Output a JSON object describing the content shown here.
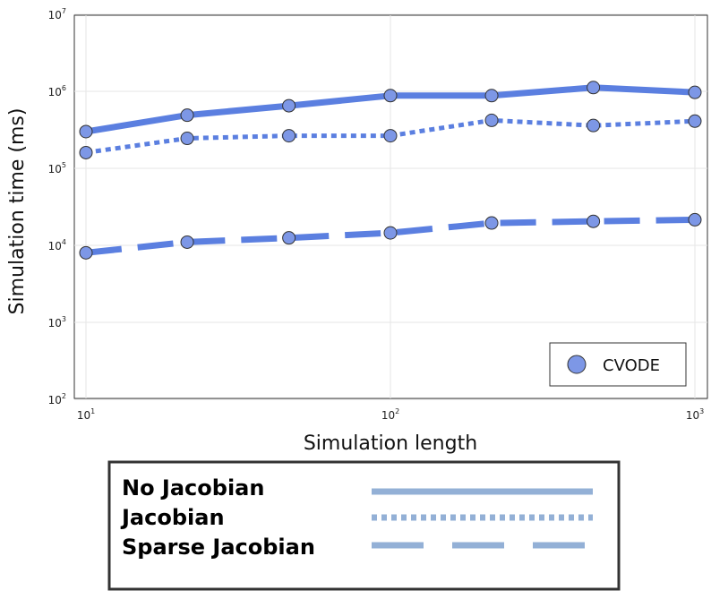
{
  "chart_data": {
    "type": "line",
    "xscale": "log",
    "yscale": "log",
    "xlim": [
      10,
      1000
    ],
    "ylim": [
      100,
      10000000
    ],
    "x_ticks": [
      {
        "base": "10",
        "exp": "1",
        "value": 10
      },
      {
        "base": "10",
        "exp": "2",
        "value": 100
      },
      {
        "base": "10",
        "exp": "3",
        "value": 1000
      }
    ],
    "y_ticks": [
      {
        "base": "10",
        "exp": "2",
        "value": 100
      },
      {
        "base": "10",
        "exp": "3",
        "value": 1000
      },
      {
        "base": "10",
        "exp": "4",
        "value": 10000
      },
      {
        "base": "10",
        "exp": "5",
        "value": 100000
      },
      {
        "base": "10",
        "exp": "6",
        "value": 1000000
      },
      {
        "base": "10",
        "exp": "7",
        "value": 10000000
      }
    ],
    "xlabel": "Simulation length",
    "ylabel": "Simulation time (ms)",
    "grid": true,
    "legend": {
      "placement": "bottom-right",
      "entries": [
        "CVODE"
      ]
    },
    "x": [
      10,
      21.5,
      46.4,
      100,
      215,
      464,
      1000
    ],
    "series": [
      {
        "name": "No Jacobian",
        "style": "solid",
        "values": [
          300000,
          490000,
          650000,
          880000,
          880000,
          1120000,
          970000
        ]
      },
      {
        "name": "Jacobian",
        "style": "dotted",
        "values": [
          160000,
          245000,
          265000,
          265000,
          420000,
          360000,
          410000
        ]
      },
      {
        "name": "Sparse Jacobian",
        "style": "dashed",
        "values": [
          8000,
          11000,
          12500,
          14500,
          19500,
          20500,
          21500
        ]
      }
    ],
    "colors": {
      "line": "#5b7fe0",
      "marker": "#7d97e6",
      "marker_edge": "#333333",
      "key_line": "#93b0d6"
    }
  },
  "key": {
    "entries": [
      {
        "label": "No Jacobian",
        "style": "solid"
      },
      {
        "label": "Jacobian",
        "style": "dotted"
      },
      {
        "label": "Sparse Jacobian",
        "style": "dashed"
      }
    ]
  }
}
